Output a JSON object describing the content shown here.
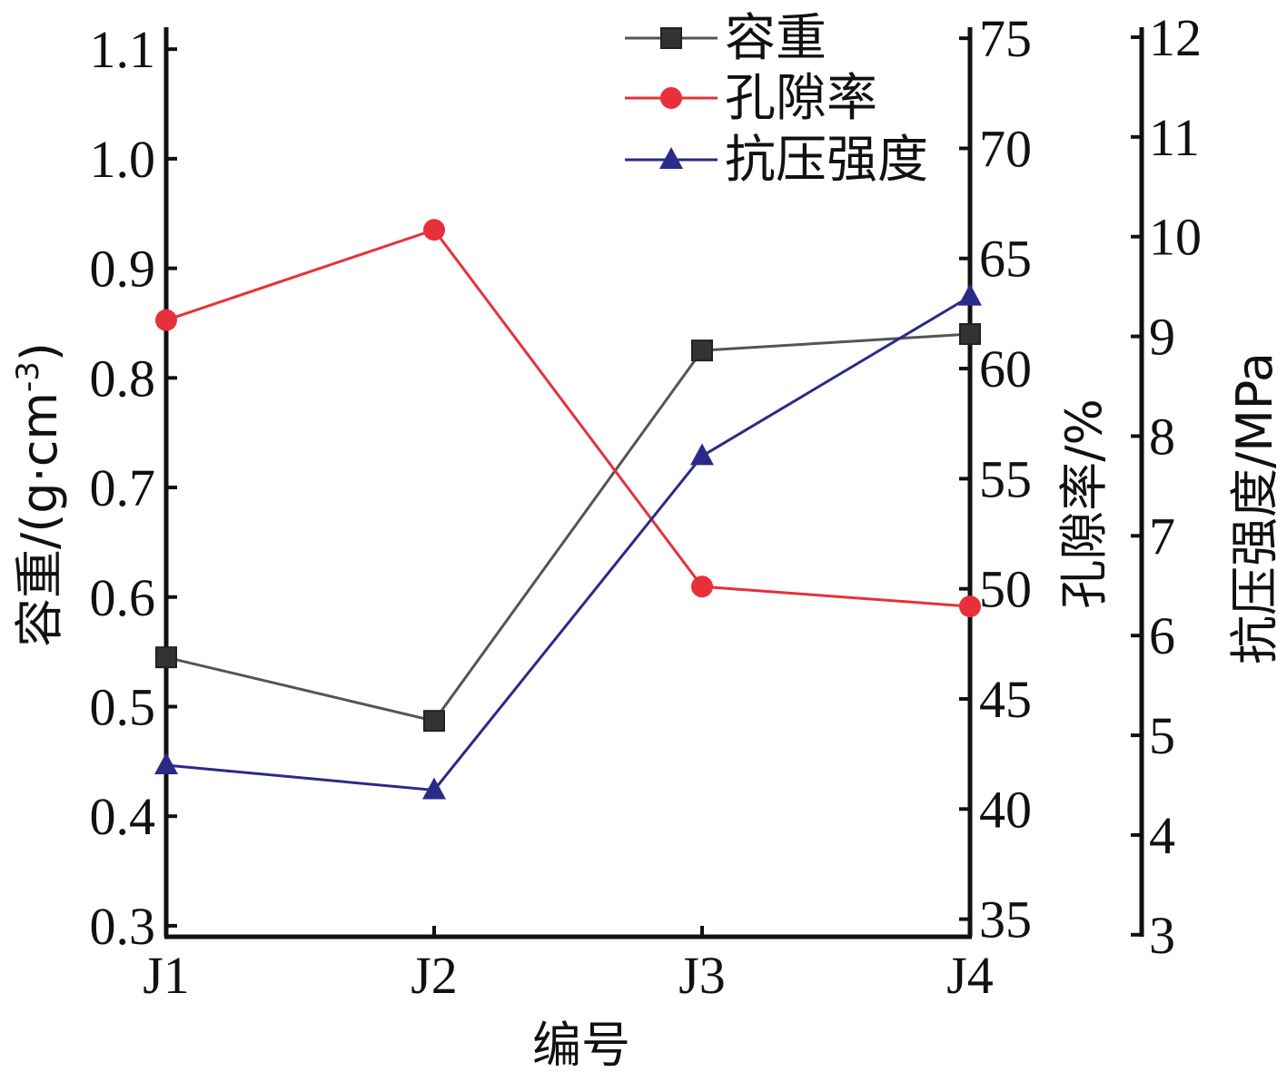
{
  "chart_data": {
    "type": "line",
    "categories": [
      "J1",
      "J2",
      "J3",
      "J4"
    ],
    "xlabel": "编号",
    "axes": {
      "left": {
        "label": "容重/(g·cm",
        "label_sup": "-3",
        "label_close": ")",
        "ylim": [
          0.29,
          1.12
        ],
        "ticks": [
          0.3,
          0.4,
          0.5,
          0.6,
          0.7,
          0.8,
          0.9,
          1.0,
          1.1
        ],
        "tick_labels": [
          "0.3",
          "0.4",
          "0.5",
          "0.6",
          "0.7",
          "0.8",
          "0.9",
          "1.0",
          "1.1"
        ]
      },
      "right1": {
        "label": "孔隙率/%",
        "ylim": [
          34.2,
          75.5
        ],
        "ticks": [
          35,
          40,
          45,
          50,
          55,
          60,
          65,
          70,
          75
        ],
        "tick_labels": [
          "35",
          "40",
          "45",
          "50",
          "55",
          "60",
          "65",
          "70",
          "75"
        ]
      },
      "right2": {
        "label": "抗压强度/MPa",
        "ylim": [
          2.98,
          12.1
        ],
        "ticks": [
          3,
          4,
          5,
          6,
          7,
          8,
          9,
          10,
          11,
          12
        ],
        "tick_labels": [
          "3",
          "4",
          "5",
          "6",
          "7",
          "8",
          "9",
          "10",
          "11",
          "12"
        ]
      }
    },
    "series": [
      {
        "name": "容重",
        "axis": "left",
        "color": "#555555",
        "marker": "square",
        "values": [
          0.545,
          0.487,
          0.825,
          0.84
        ]
      },
      {
        "name": "孔隙率",
        "axis": "right1",
        "color": "#e8303a",
        "marker": "circle",
        "values": [
          62.2,
          66.3,
          50.1,
          49.2
        ]
      },
      {
        "name": "抗压强度",
        "axis": "right2",
        "color": "#2a2a88",
        "marker": "triangle",
        "values": [
          4.7,
          4.45,
          7.8,
          9.4
        ]
      }
    ],
    "legend": {
      "position": "top-right"
    },
    "grid": false
  }
}
